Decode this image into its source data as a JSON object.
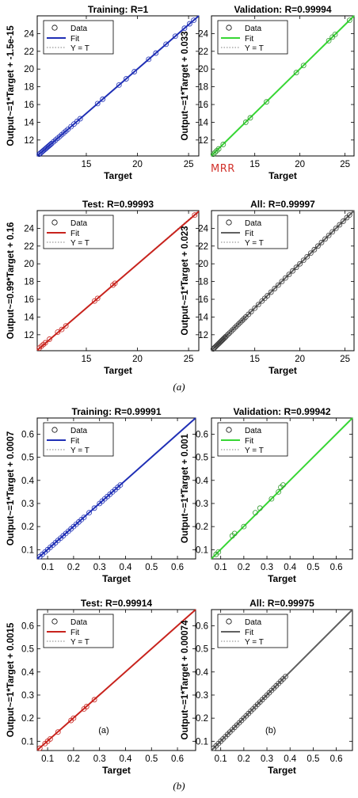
{
  "figure": {
    "caption_a": "(a)",
    "caption_b": "(b)",
    "mrr_label": "MRR"
  },
  "legend_labels": {
    "data": "Data",
    "fit": "Fit",
    "yt": "Y = T"
  },
  "chart_data": [
    {
      "type": "scatter",
      "panel": "a",
      "title": "Training: R=1",
      "xlabel": "Target",
      "ylabel": "Output~=1*Target + -1.5e-15",
      "xlim": [
        10.2,
        26
      ],
      "ylim": [
        10.2,
        26
      ],
      "xticks": [
        15,
        20,
        25
      ],
      "yticks": [
        12,
        14,
        16,
        18,
        20,
        22,
        24
      ],
      "fit": {
        "slope": 1,
        "intercept": 0,
        "color": "#1f2fb5"
      },
      "marker_color": "#1f2fb5",
      "points": [
        [
          10.4,
          10.4
        ],
        [
          10.5,
          10.5
        ],
        [
          10.6,
          10.6
        ],
        [
          10.7,
          10.7
        ],
        [
          10.8,
          10.8
        ],
        [
          10.9,
          10.9
        ],
        [
          11.0,
          11.0
        ],
        [
          11.1,
          11.1
        ],
        [
          11.2,
          11.2
        ],
        [
          11.3,
          11.3
        ],
        [
          11.4,
          11.4
        ],
        [
          11.5,
          11.5
        ],
        [
          11.6,
          11.6
        ],
        [
          11.8,
          11.8
        ],
        [
          12.0,
          12.0
        ],
        [
          12.2,
          12.2
        ],
        [
          12.4,
          12.4
        ],
        [
          12.6,
          12.6
        ],
        [
          12.8,
          12.8
        ],
        [
          13.0,
          13.0
        ],
        [
          13.2,
          13.2
        ],
        [
          13.5,
          13.5
        ],
        [
          13.8,
          13.8
        ],
        [
          14.1,
          14.1
        ],
        [
          14.4,
          14.4
        ],
        [
          16.1,
          16.1
        ],
        [
          16.6,
          16.6
        ],
        [
          18.2,
          18.2
        ],
        [
          18.9,
          18.9
        ],
        [
          19.7,
          19.7
        ],
        [
          21.1,
          21.1
        ],
        [
          21.8,
          21.8
        ],
        [
          22.8,
          22.8
        ],
        [
          23.7,
          23.7
        ],
        [
          24.6,
          24.6
        ],
        [
          25.1,
          25.1
        ],
        [
          25.5,
          25.5
        ]
      ]
    },
    {
      "type": "scatter",
      "panel": "a",
      "title": "Validation: R=0.99994",
      "xlabel": "Target",
      "ylabel": "Output~=1*Target + 0.033",
      "xlim": [
        10.2,
        26
      ],
      "ylim": [
        10.2,
        26
      ],
      "xticks": [
        15,
        20,
        25
      ],
      "yticks": [
        12,
        14,
        16,
        18,
        20,
        22,
        24
      ],
      "fit": {
        "slope": 1,
        "intercept": 0.033,
        "color": "#37d634"
      },
      "marker_color": "#2f9a2c",
      "points": [
        [
          10.4,
          10.4
        ],
        [
          10.6,
          10.6
        ],
        [
          10.8,
          10.8
        ],
        [
          11.0,
          11.0
        ],
        [
          11.5,
          11.5
        ],
        [
          14.0,
          14.0
        ],
        [
          14.5,
          14.5
        ],
        [
          16.3,
          16.3
        ],
        [
          19.6,
          19.6
        ],
        [
          20.4,
          20.4
        ],
        [
          23.2,
          23.2
        ],
        [
          23.6,
          23.6
        ],
        [
          23.9,
          23.9
        ],
        [
          25.5,
          25.5
        ]
      ]
    },
    {
      "type": "scatter",
      "panel": "a",
      "title": "Test: R=0.99993",
      "xlabel": "Target",
      "ylabel": "Output~=0.99*Target + 0.16",
      "xlim": [
        10.2,
        26
      ],
      "ylim": [
        10.2,
        26
      ],
      "xticks": [
        15,
        20,
        25
      ],
      "yticks": [
        12,
        14,
        16,
        18,
        20,
        22,
        24
      ],
      "fit": {
        "slope": 0.99,
        "intercept": 0.16,
        "color": "#c8231d"
      },
      "marker_color": "#c8231d",
      "points": [
        [
          10.4,
          10.5
        ],
        [
          10.6,
          10.7
        ],
        [
          10.8,
          10.9
        ],
        [
          11.0,
          11.1
        ],
        [
          11.4,
          11.5
        ],
        [
          12.2,
          12.3
        ],
        [
          12.6,
          12.6
        ],
        [
          13.0,
          13.0
        ],
        [
          15.8,
          15.8
        ],
        [
          16.1,
          16.1
        ],
        [
          17.6,
          17.6
        ],
        [
          17.8,
          17.8
        ],
        [
          25.6,
          25.5
        ]
      ]
    },
    {
      "type": "scatter",
      "panel": "a",
      "title": "All: R=0.99997",
      "xlabel": "Target",
      "ylabel": "Output~=1*Target + 0.023",
      "xlim": [
        10.2,
        26
      ],
      "ylim": [
        10.2,
        26
      ],
      "xticks": [
        15,
        20,
        25
      ],
      "yticks": [
        12,
        14,
        16,
        18,
        20,
        22,
        24
      ],
      "fit": {
        "slope": 1,
        "intercept": 0.023,
        "color": "#606060"
      },
      "marker_color": "#3a3a3a",
      "points": [
        [
          10.4,
          10.4
        ],
        [
          10.5,
          10.5
        ],
        [
          10.6,
          10.6
        ],
        [
          10.7,
          10.7
        ],
        [
          10.8,
          10.8
        ],
        [
          10.9,
          10.9
        ],
        [
          11.0,
          11.0
        ],
        [
          11.1,
          11.1
        ],
        [
          11.2,
          11.2
        ],
        [
          11.3,
          11.3
        ],
        [
          11.4,
          11.4
        ],
        [
          11.5,
          11.5
        ],
        [
          11.6,
          11.6
        ],
        [
          11.7,
          11.7
        ],
        [
          11.8,
          11.8
        ],
        [
          12.0,
          12.0
        ],
        [
          12.2,
          12.2
        ],
        [
          12.4,
          12.4
        ],
        [
          12.6,
          12.6
        ],
        [
          12.8,
          12.8
        ],
        [
          13.0,
          13.0
        ],
        [
          13.2,
          13.2
        ],
        [
          13.4,
          13.4
        ],
        [
          13.6,
          13.6
        ],
        [
          13.8,
          13.8
        ],
        [
          14.0,
          14.0
        ],
        [
          14.3,
          14.3
        ],
        [
          14.6,
          14.6
        ],
        [
          15.0,
          15.0
        ],
        [
          15.4,
          15.4
        ],
        [
          15.8,
          15.8
        ],
        [
          16.1,
          16.1
        ],
        [
          16.4,
          16.4
        ],
        [
          16.8,
          16.8
        ],
        [
          17.2,
          17.2
        ],
        [
          17.6,
          17.6
        ],
        [
          18.0,
          18.0
        ],
        [
          18.4,
          18.4
        ],
        [
          18.8,
          18.8
        ],
        [
          19.2,
          19.2
        ],
        [
          19.6,
          19.6
        ],
        [
          20.0,
          20.0
        ],
        [
          20.4,
          20.4
        ],
        [
          20.8,
          20.8
        ],
        [
          21.2,
          21.2
        ],
        [
          21.6,
          21.6
        ],
        [
          22.0,
          22.0
        ],
        [
          22.4,
          22.4
        ],
        [
          22.8,
          22.8
        ],
        [
          23.2,
          23.2
        ],
        [
          23.6,
          23.6
        ],
        [
          24.0,
          24.0
        ],
        [
          24.4,
          24.4
        ],
        [
          24.8,
          24.8
        ],
        [
          25.2,
          25.2
        ],
        [
          25.5,
          25.5
        ]
      ]
    },
    {
      "type": "scatter",
      "panel": "b",
      "title": "Training: R=0.99991",
      "xlabel": "Target",
      "ylabel": "Output~=1*Target + 0.0007",
      "xlim": [
        0.06,
        0.67
      ],
      "ylim": [
        0.06,
        0.67
      ],
      "xticks": [
        0.1,
        0.2,
        0.3,
        0.4,
        0.5,
        0.6
      ],
      "yticks": [
        0.1,
        0.2,
        0.3,
        0.4,
        0.5,
        0.6
      ],
      "fit": {
        "slope": 1,
        "intercept": 0.0007,
        "color": "#1f2fb5"
      },
      "marker_color": "#1f2fb5",
      "points": [
        [
          0.07,
          0.07
        ],
        [
          0.08,
          0.08
        ],
        [
          0.09,
          0.09
        ],
        [
          0.1,
          0.1
        ],
        [
          0.11,
          0.11
        ],
        [
          0.12,
          0.12
        ],
        [
          0.13,
          0.13
        ],
        [
          0.14,
          0.14
        ],
        [
          0.15,
          0.15
        ],
        [
          0.16,
          0.16
        ],
        [
          0.17,
          0.17
        ],
        [
          0.18,
          0.18
        ],
        [
          0.19,
          0.19
        ],
        [
          0.2,
          0.2
        ],
        [
          0.21,
          0.21
        ],
        [
          0.22,
          0.22
        ],
        [
          0.23,
          0.23
        ],
        [
          0.24,
          0.24
        ],
        [
          0.26,
          0.26
        ],
        [
          0.28,
          0.28
        ],
        [
          0.3,
          0.3
        ],
        [
          0.31,
          0.31
        ],
        [
          0.32,
          0.32
        ],
        [
          0.33,
          0.33
        ],
        [
          0.34,
          0.34
        ],
        [
          0.35,
          0.35
        ],
        [
          0.36,
          0.36
        ],
        [
          0.37,
          0.37
        ],
        [
          0.38,
          0.38
        ]
      ]
    },
    {
      "type": "scatter",
      "panel": "b",
      "title": "Validation: R=0.99942",
      "xlabel": "Target",
      "ylabel": "Output~=1*Target + 0.001",
      "xlim": [
        0.06,
        0.67
      ],
      "ylim": [
        0.06,
        0.67
      ],
      "xticks": [
        0.1,
        0.2,
        0.3,
        0.4,
        0.5,
        0.6
      ],
      "yticks": [
        0.1,
        0.2,
        0.3,
        0.4,
        0.5,
        0.6
      ],
      "fit": {
        "slope": 1,
        "intercept": 0.001,
        "color": "#37d634"
      },
      "marker_color": "#2f9a2c",
      "points": [
        [
          0.08,
          0.08
        ],
        [
          0.09,
          0.09
        ],
        [
          0.15,
          0.16
        ],
        [
          0.16,
          0.17
        ],
        [
          0.2,
          0.2
        ],
        [
          0.25,
          0.26
        ],
        [
          0.27,
          0.28
        ],
        [
          0.32,
          0.32
        ],
        [
          0.35,
          0.35
        ],
        [
          0.36,
          0.37
        ],
        [
          0.37,
          0.38
        ]
      ]
    },
    {
      "type": "scatter",
      "panel": "b",
      "title": "Test: R=0.99914",
      "xlabel": "Target",
      "ylabel": "Output~=1*Target + 0.0015",
      "xlim": [
        0.06,
        0.67
      ],
      "ylim": [
        0.06,
        0.67
      ],
      "xticks": [
        0.1,
        0.2,
        0.3,
        0.4,
        0.5,
        0.6
      ],
      "yticks": [
        0.1,
        0.2,
        0.3,
        0.4,
        0.5,
        0.6
      ],
      "fit": {
        "slope": 1,
        "intercept": 0.0015,
        "color": "#c8231d"
      },
      "marker_color": "#c8231d",
      "annotation": "(a)",
      "points": [
        [
          0.07,
          0.07
        ],
        [
          0.09,
          0.09
        ],
        [
          0.1,
          0.1
        ],
        [
          0.11,
          0.11
        ],
        [
          0.14,
          0.14
        ],
        [
          0.19,
          0.19
        ],
        [
          0.2,
          0.2
        ],
        [
          0.24,
          0.24
        ],
        [
          0.25,
          0.25
        ],
        [
          0.28,
          0.28
        ]
      ]
    },
    {
      "type": "scatter",
      "panel": "b",
      "title": "All: R=0.99975",
      "xlabel": "Target",
      "ylabel": "Output~=1*Target + 0.00074",
      "xlim": [
        0.06,
        0.67
      ],
      "ylim": [
        0.06,
        0.67
      ],
      "xticks": [
        0.1,
        0.2,
        0.3,
        0.4,
        0.5,
        0.6
      ],
      "yticks": [
        0.1,
        0.2,
        0.3,
        0.4,
        0.5,
        0.6
      ],
      "fit": {
        "slope": 1,
        "intercept": 0.00074,
        "color": "#606060"
      },
      "marker_color": "#3a3a3a",
      "annotation": "(b)",
      "points": [
        [
          0.07,
          0.07
        ],
        [
          0.08,
          0.08
        ],
        [
          0.09,
          0.09
        ],
        [
          0.1,
          0.1
        ],
        [
          0.11,
          0.11
        ],
        [
          0.12,
          0.12
        ],
        [
          0.13,
          0.13
        ],
        [
          0.14,
          0.14
        ],
        [
          0.15,
          0.15
        ],
        [
          0.16,
          0.16
        ],
        [
          0.17,
          0.17
        ],
        [
          0.18,
          0.18
        ],
        [
          0.19,
          0.19
        ],
        [
          0.2,
          0.2
        ],
        [
          0.21,
          0.21
        ],
        [
          0.22,
          0.22
        ],
        [
          0.23,
          0.23
        ],
        [
          0.24,
          0.24
        ],
        [
          0.25,
          0.25
        ],
        [
          0.26,
          0.26
        ],
        [
          0.27,
          0.27
        ],
        [
          0.28,
          0.28
        ],
        [
          0.29,
          0.29
        ],
        [
          0.3,
          0.3
        ],
        [
          0.31,
          0.31
        ],
        [
          0.32,
          0.32
        ],
        [
          0.33,
          0.33
        ],
        [
          0.34,
          0.34
        ],
        [
          0.35,
          0.35
        ],
        [
          0.36,
          0.36
        ],
        [
          0.37,
          0.37
        ],
        [
          0.38,
          0.38
        ]
      ]
    }
  ]
}
